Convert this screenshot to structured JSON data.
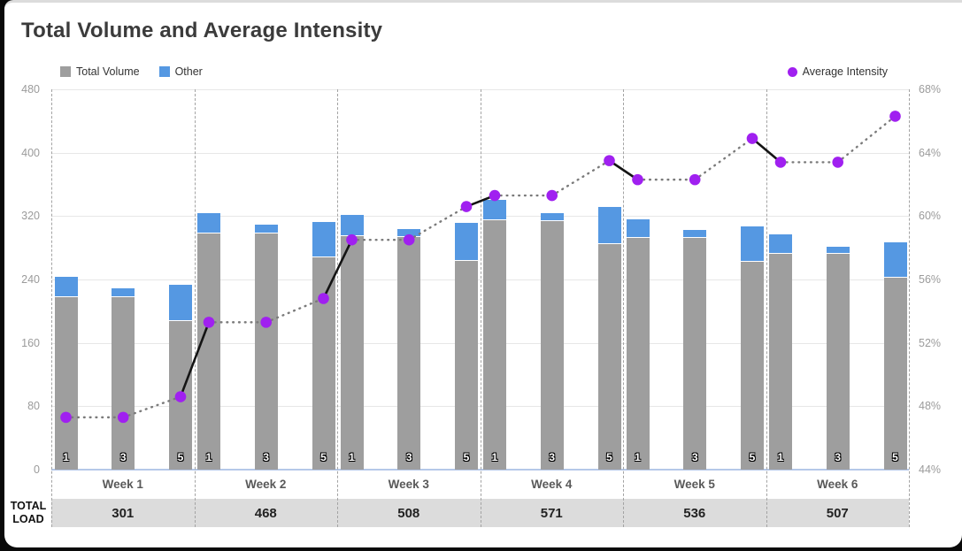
{
  "title": "Total Volume and Average Intensity",
  "legend": {
    "total_volume": "Total Volume",
    "other": "Other",
    "average_intensity": "Average Intensity"
  },
  "total_load_label": "TOTAL LOAD",
  "colors": {
    "bar_gray": "#9e9e9e",
    "bar_blue": "#5598e2",
    "intensity_purple": "#a020f0",
    "solid_line": "#141414",
    "dotted_line": "#7a7a7a",
    "grid": "#e7e7e7",
    "axis_bottom": "#b5c8e9",
    "band_bg": "#dcdcdc"
  },
  "chart_data": {
    "type": "combo-stacked-bar-line",
    "title": "Total Volume and Average Intensity",
    "bar_series_names": [
      "Total Volume",
      "Other"
    ],
    "line_series_name": "Average Intensity",
    "left_axis": {
      "min": 0,
      "max": 480,
      "step": 80,
      "ticks": [
        "480",
        "400",
        "320",
        "240",
        "160",
        "80",
        "0"
      ]
    },
    "right_axis": {
      "min": 44,
      "max": 68,
      "step": 4,
      "unit": "%",
      "ticks": [
        "68%",
        "64%",
        "60%",
        "56%",
        "52%",
        "48%",
        "44%"
      ]
    },
    "line_style": "dotted within week, solid black between last day of a week and first day of next week",
    "grid": "horizontal light gray lines at every left-axis tick; dashed vertical separators between weeks",
    "weeks": [
      {
        "label": "Week 1",
        "total_load": 301,
        "days": [
          {
            "day": "1",
            "total_volume": 218,
            "other": 25,
            "avg_intensity_pct": 47.3
          },
          {
            "day": "3",
            "total_volume": 218,
            "other": 11,
            "avg_intensity_pct": 47.3
          },
          {
            "day": "5",
            "total_volume": 188,
            "other": 45,
            "avg_intensity_pct": 48.6
          }
        ]
      },
      {
        "label": "Week 2",
        "total_load": 468,
        "days": [
          {
            "day": "1",
            "total_volume": 298,
            "other": 26,
            "avg_intensity_pct": 53.3
          },
          {
            "day": "3",
            "total_volume": 298,
            "other": 11,
            "avg_intensity_pct": 53.3
          },
          {
            "day": "5",
            "total_volume": 268,
            "other": 45,
            "avg_intensity_pct": 54.8
          }
        ]
      },
      {
        "label": "Week 3",
        "total_load": 508,
        "days": [
          {
            "day": "1",
            "total_volume": 295,
            "other": 26,
            "avg_intensity_pct": 58.5
          },
          {
            "day": "3",
            "total_volume": 294,
            "other": 10,
            "avg_intensity_pct": 58.5
          },
          {
            "day": "5",
            "total_volume": 263,
            "other": 48,
            "avg_intensity_pct": 60.6
          }
        ]
      },
      {
        "label": "Week 4",
        "total_load": 571,
        "days": [
          {
            "day": "1",
            "total_volume": 315,
            "other": 26,
            "avg_intensity_pct": 61.3
          },
          {
            "day": "3",
            "total_volume": 314,
            "other": 10,
            "avg_intensity_pct": 61.3
          },
          {
            "day": "5",
            "total_volume": 285,
            "other": 46,
            "avg_intensity_pct": 63.5
          }
        ]
      },
      {
        "label": "Week 5",
        "total_load": 536,
        "days": [
          {
            "day": "1",
            "total_volume": 292,
            "other": 24,
            "avg_intensity_pct": 62.3
          },
          {
            "day": "3",
            "total_volume": 292,
            "other": 10,
            "avg_intensity_pct": 62.3
          },
          {
            "day": "5",
            "total_volume": 262,
            "other": 45,
            "avg_intensity_pct": 64.9
          }
        ]
      },
      {
        "label": "Week 6",
        "total_load": 507,
        "days": [
          {
            "day": "1",
            "total_volume": 272,
            "other": 25,
            "avg_intensity_pct": 63.4
          },
          {
            "day": "3",
            "total_volume": 272,
            "other": 9,
            "avg_intensity_pct": 63.4
          },
          {
            "day": "5",
            "total_volume": 242,
            "other": 45,
            "avg_intensity_pct": 66.3
          }
        ]
      }
    ]
  }
}
